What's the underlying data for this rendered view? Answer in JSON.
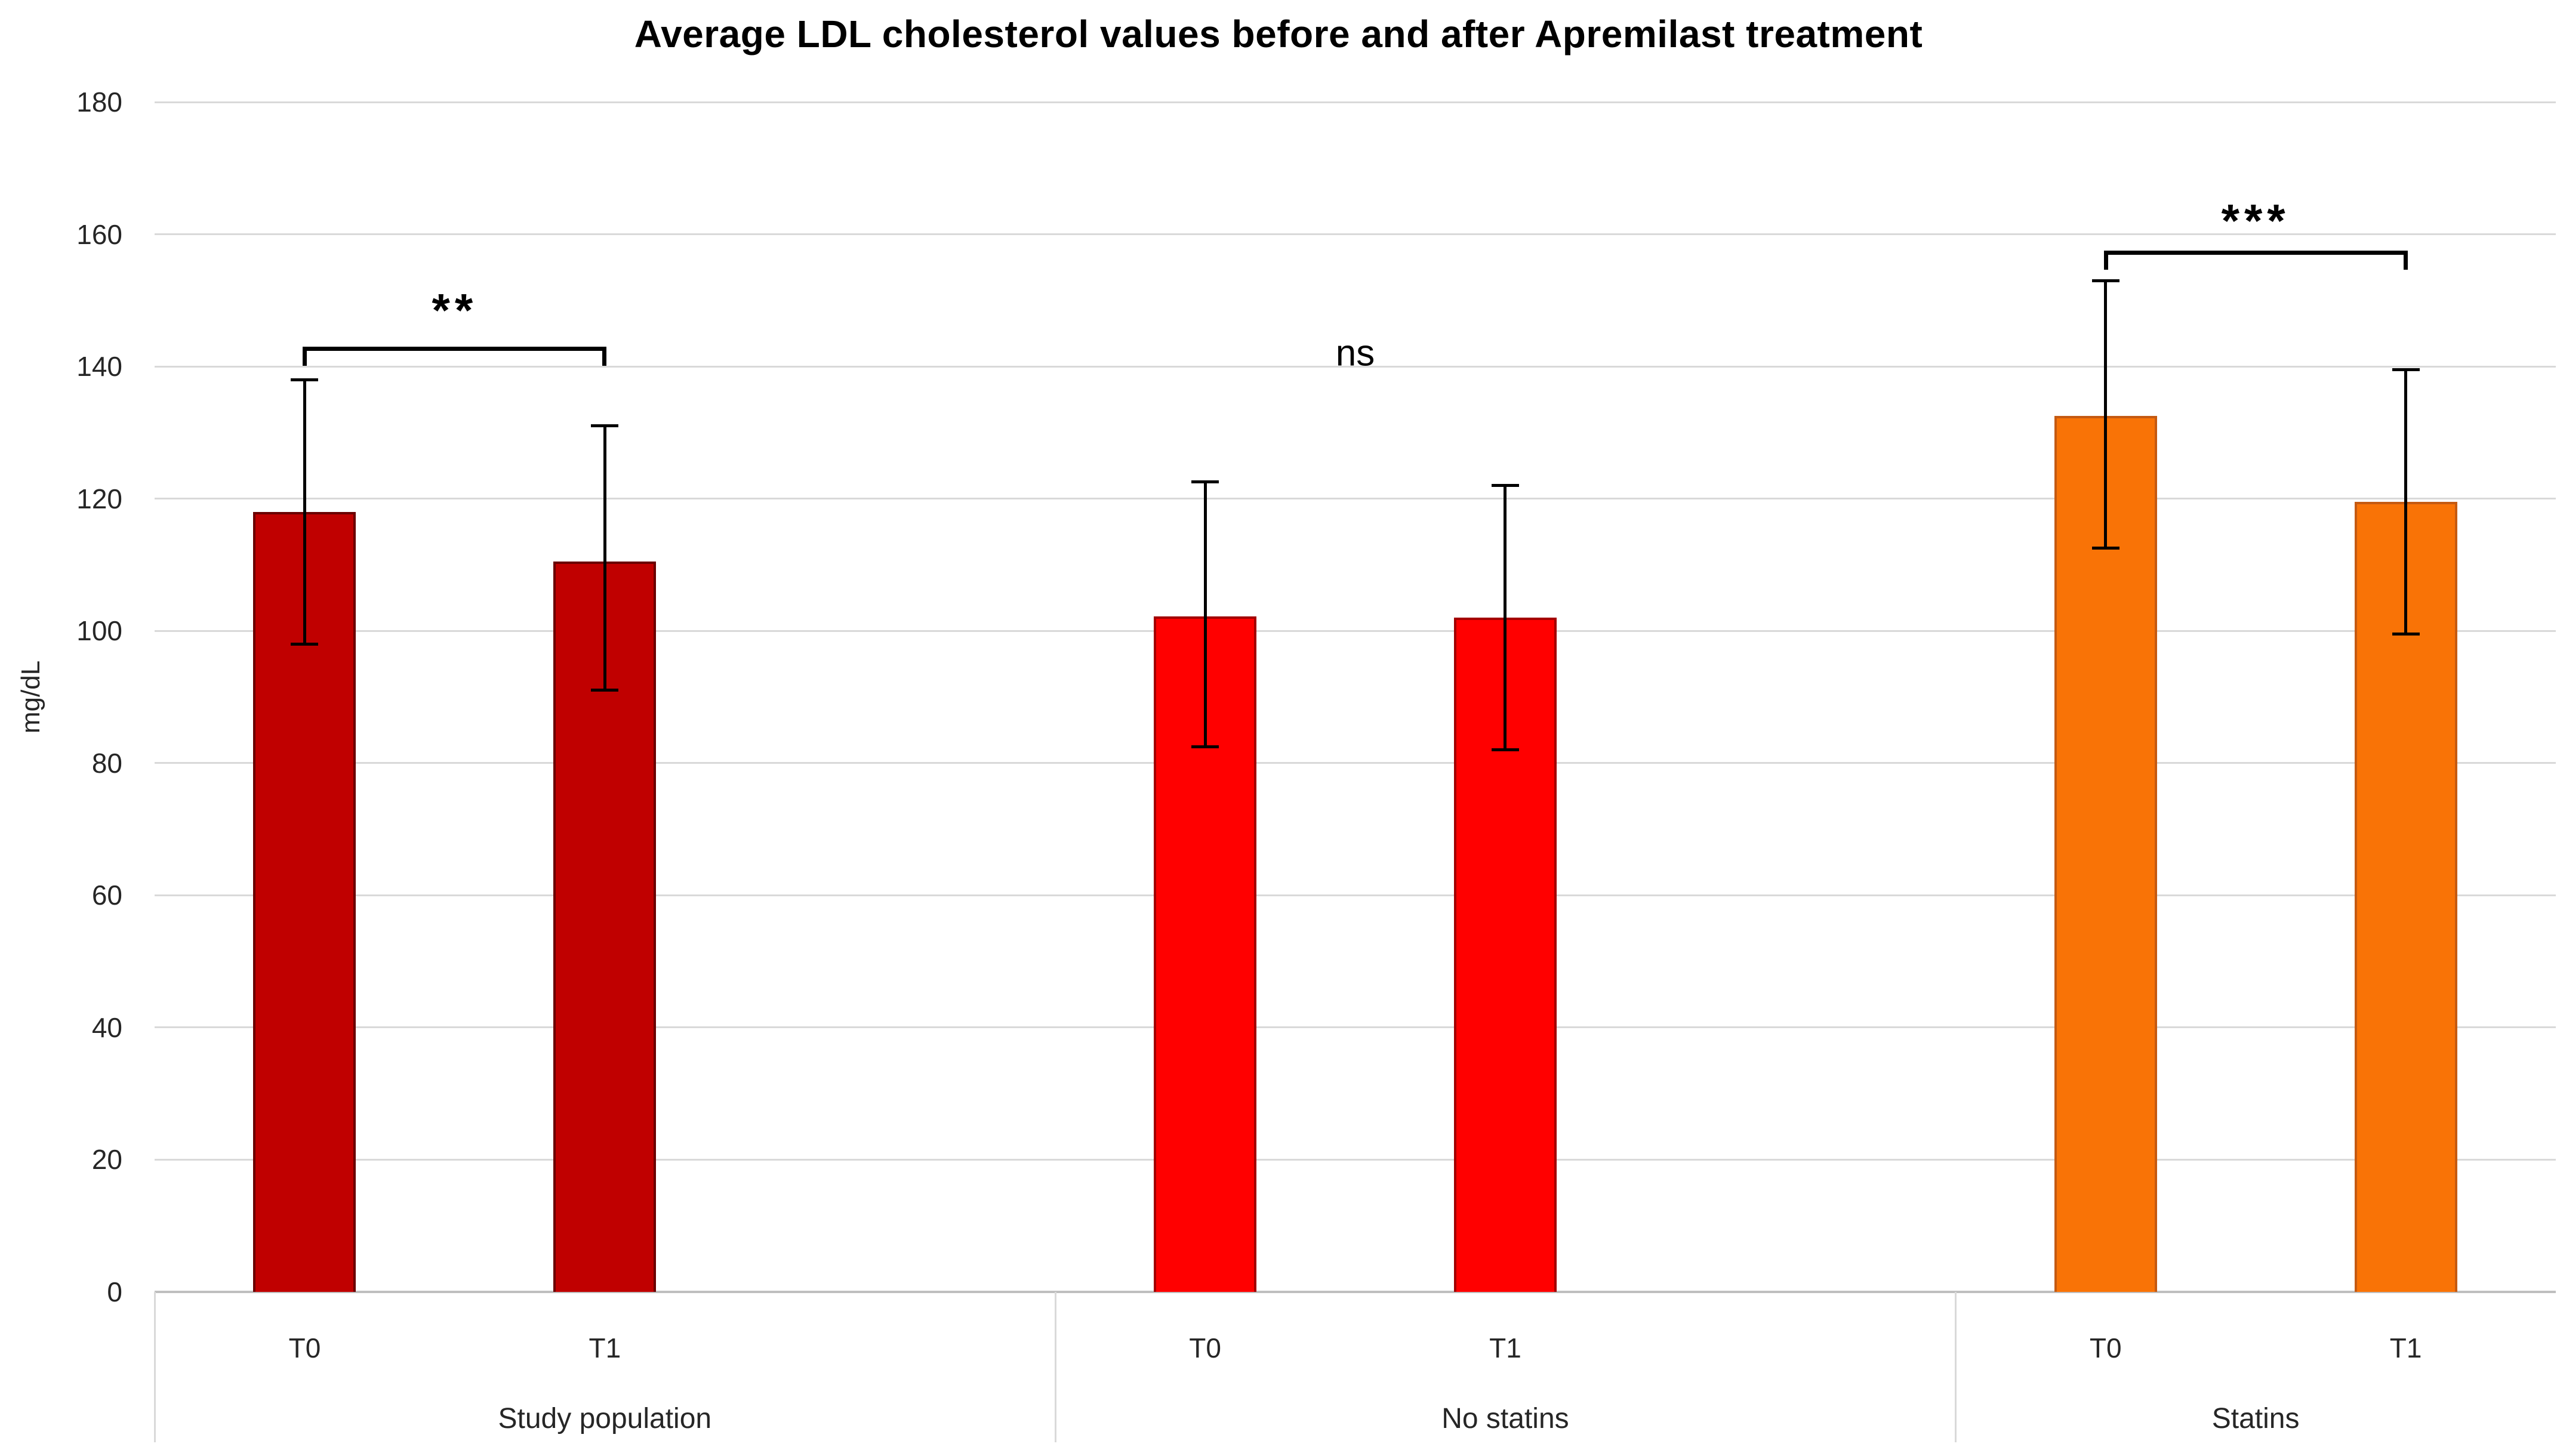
{
  "chart_data": {
    "type": "bar",
    "title": "Average LDL cholesterol values before and after Apremilast treatment",
    "ylabel": "mg/dL",
    "xlabel": "",
    "ylim": [
      0,
      180
    ],
    "ytick_interval": 20,
    "yticks": [
      0,
      20,
      40,
      60,
      80,
      100,
      120,
      140,
      160,
      180
    ],
    "grid": true,
    "legend": false,
    "error_bars": true,
    "groups": [
      {
        "label": "Study population",
        "bar_color": "#C00000",
        "bar_border": "#6B0000",
        "significance": {
          "symbol": "**",
          "bracket": true,
          "bracket_value": 143,
          "label_value": 148.5
        },
        "bars": [
          {
            "label": "T0",
            "value": 118,
            "err_low": 98,
            "err_high": 138
          },
          {
            "label": "T1",
            "value": 110.5,
            "err_low": 91,
            "err_high": 131
          }
        ]
      },
      {
        "label": "No statins",
        "bar_color": "#FF0000",
        "bar_border": "#A30000",
        "significance": {
          "symbol": "ns",
          "bracket": false,
          "label_value": 142
        },
        "bars": [
          {
            "label": "T0",
            "value": 102.2,
            "err_low": 82.5,
            "err_high": 122.5
          },
          {
            "label": "T1",
            "value": 102,
            "err_low": 82,
            "err_high": 122
          }
        ]
      },
      {
        "label": "Statins",
        "bar_color": "#F97306",
        "bar_border": "#C55A11",
        "significance": {
          "symbol": "***",
          "bracket": true,
          "bracket_value": 157.5,
          "label_value": 162
        },
        "bars": [
          {
            "label": "T0",
            "value": 132.5,
            "err_low": 112.5,
            "err_high": 153
          },
          {
            "label": "T1",
            "value": 119.5,
            "err_low": 99.5,
            "err_high": 139.5
          }
        ]
      }
    ]
  },
  "colors": {
    "background": "#FFFFFF",
    "gridline": "#D9D9D9",
    "axis_line": "#BFBFBF",
    "divider": "#D9D9D9",
    "error_bar": "#000000",
    "axis_text": "#262626",
    "annotation_text": "#000000"
  }
}
